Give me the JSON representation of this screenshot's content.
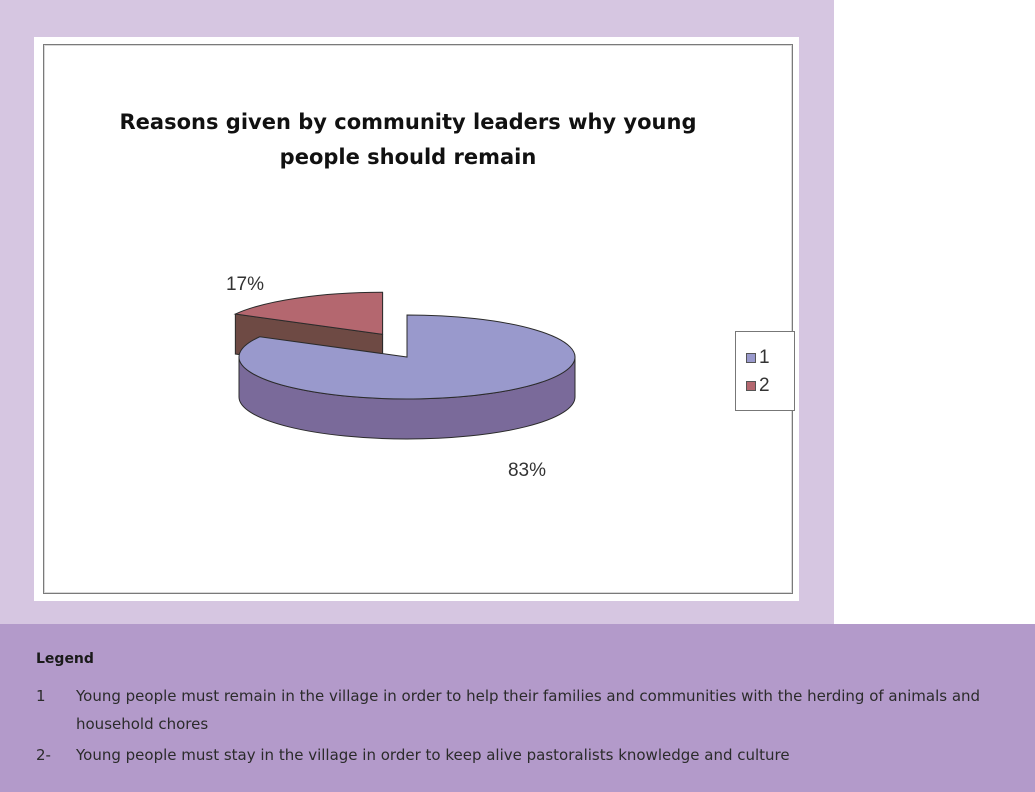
{
  "chart_data": {
    "type": "pie",
    "title": "Reasons given by community leaders why young people should remain",
    "slices": [
      {
        "name": "1",
        "value": 83,
        "label": "83%",
        "color": "#9999cc"
      },
      {
        "name": "2",
        "value": 17,
        "label": "17%",
        "color": "#b4676f"
      }
    ],
    "legend": [
      "1",
      "2"
    ],
    "legend_placement": "right",
    "three_d": true
  },
  "legend_panel": {
    "heading": "Legend",
    "items": [
      {
        "number": "1",
        "text": "Young people must remain in the village in order to help their families and communities with the herding of animals and household chores"
      },
      {
        "number": "2-",
        "text": "Young people must stay in the village in order to keep alive pastoralists knowledge and culture"
      }
    ]
  },
  "colors": {
    "frame": "#d6c6e1",
    "panel": "#b39aca",
    "slice_1_top": "#9999cc",
    "slice_1_side": "#7a6a9a",
    "slice_2_top": "#b4676f",
    "slice_2_side": "#6e4a44"
  }
}
